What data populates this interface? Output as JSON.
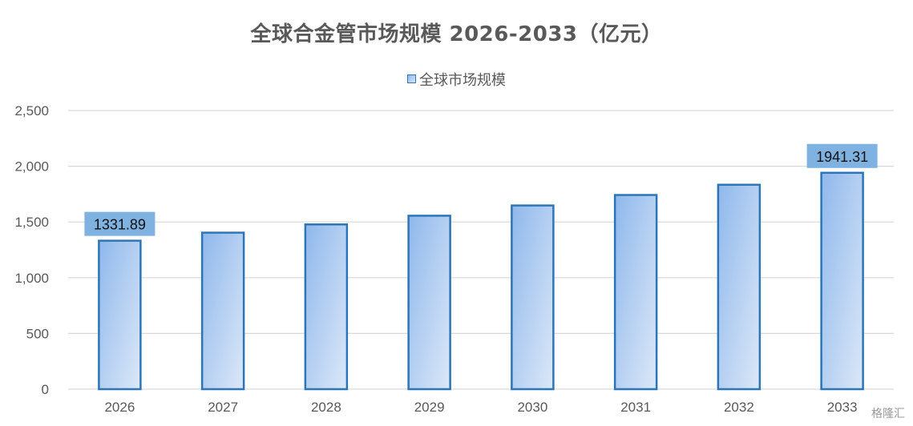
{
  "chart_data": {
    "type": "bar",
    "title": "全球合金管市场规模 2026-2033（亿元）",
    "legend": "top",
    "grid": true,
    "categories": [
      "2026",
      "2027",
      "2028",
      "2029",
      "2030",
      "2031",
      "2032",
      "2033"
    ],
    "series": [
      {
        "name": "全球市场规模",
        "values": [
          1331.89,
          1404,
          1478,
          1556,
          1648,
          1742,
          1834,
          1941.31
        ]
      }
    ],
    "data_labels": [
      {
        "category_index": 0,
        "text": "1331.89"
      },
      {
        "category_index": 7,
        "text": "1941.31"
      }
    ],
    "ylim": [
      0,
      2500
    ],
    "yticks": [
      "0",
      "500",
      "1,000",
      "1,500",
      "2,000",
      "2,500"
    ],
    "ytick_values": [
      0,
      500,
      1000,
      1500,
      2000,
      2500
    ],
    "colors": {
      "bar_fill_top": "#8FB8EC",
      "bar_fill_bottom": "#DCE8F8",
      "bar_stroke": "#2E75B6",
      "label_bg": "#7FB2E0",
      "gridline": "#D9D9D9",
      "text": "#595959"
    }
  },
  "watermark": "格隆汇"
}
